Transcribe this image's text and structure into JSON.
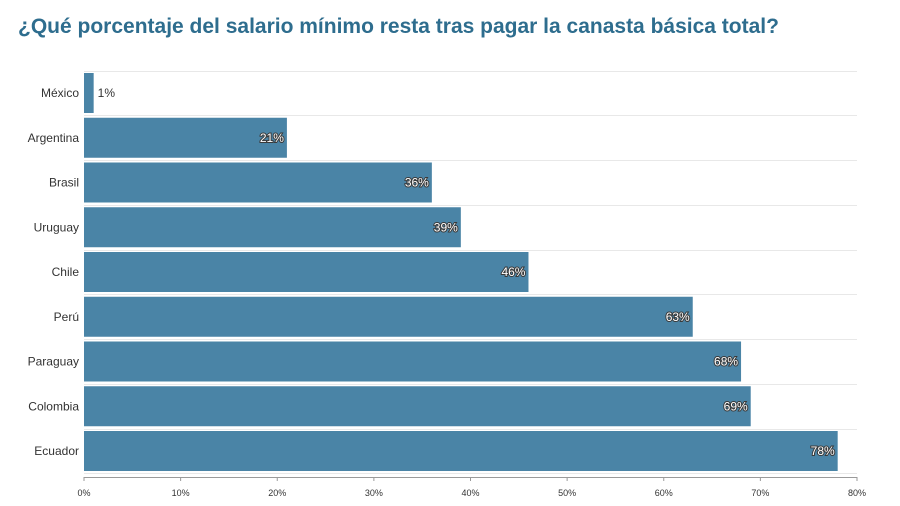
{
  "colors": {
    "title": "#2e6d8e",
    "bar": "#4a84a6",
    "background": "#ffffff"
  },
  "chart_data": {
    "type": "bar",
    "orientation": "horizontal",
    "title": "¿Qué porcentaje del salario mínimo resta tras pagar la canasta básica total?",
    "categories": [
      "México",
      "Argentina",
      "Brasil",
      "Uruguay",
      "Chile",
      "Perú",
      "Paraguay",
      "Colombia",
      "Ecuador"
    ],
    "values": [
      1,
      21,
      36,
      39,
      46,
      63,
      68,
      69,
      78
    ],
    "value_labels": [
      "1%",
      "21%",
      "36%",
      "39%",
      "46%",
      "63%",
      "68%",
      "69%",
      "78%"
    ],
    "xlim": [
      0,
      80
    ],
    "x_ticks": [
      0,
      10,
      20,
      30,
      40,
      50,
      60,
      70,
      80
    ],
    "x_tick_labels": [
      "0%",
      "10%",
      "20%",
      "30%",
      "40%",
      "50%",
      "60%",
      "70%",
      "80%"
    ],
    "grid": true,
    "legend": "none"
  }
}
